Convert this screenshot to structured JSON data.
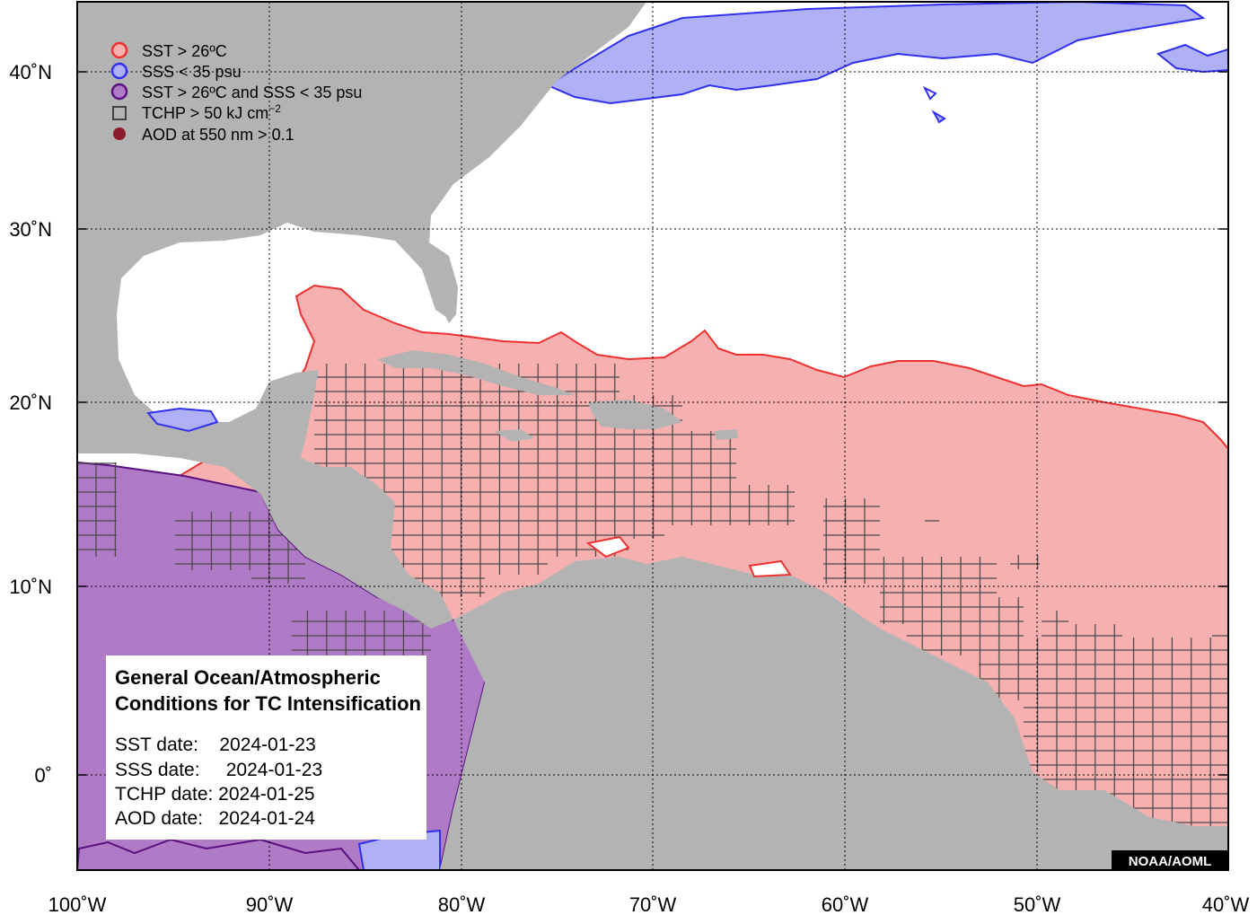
{
  "legend": {
    "sst": "SST > 26ºC",
    "sss": "SSS < 35 psu",
    "both": "SST > 26ºC and SSS < 35 psu",
    "tchp": "TCHP > 50 kJ cm",
    "tchp_exp": "−2",
    "aod": "AOD at 550 nm > 0.1"
  },
  "info": {
    "title_line1": "General Ocean/Atmospheric",
    "title_line2": "Conditions for TC Intensification",
    "sst_date": "SST date:    2024-01-23",
    "sss_date": "SSS date:     2024-01-23",
    "tchp_date": "TCHP date: 2024-01-25",
    "aod_date": "AOD date:   2024-01-24"
  },
  "credit": "NOAA/AOML",
  "axes": {
    "lat_labels": [
      "40˚N",
      "30˚N",
      "20˚N",
      "10˚N",
      "0˚"
    ],
    "lon_labels": [
      "100˚W",
      "90˚W",
      "80˚W",
      "70˚W",
      "60˚W",
      "50˚W",
      "40˚W"
    ]
  },
  "colors": {
    "land": "#b3b3b3",
    "ocean": "#ffffff",
    "sst_fill": "#f7b0b0",
    "sst_line": "#ee3030",
    "sss_fill": "#b0b0f7",
    "sss_line": "#3030ee",
    "both_fill": "#b07bc6",
    "both_line": "#5a1080",
    "tchp_line": "#444444",
    "aod": "#8a1a2a"
  }
}
